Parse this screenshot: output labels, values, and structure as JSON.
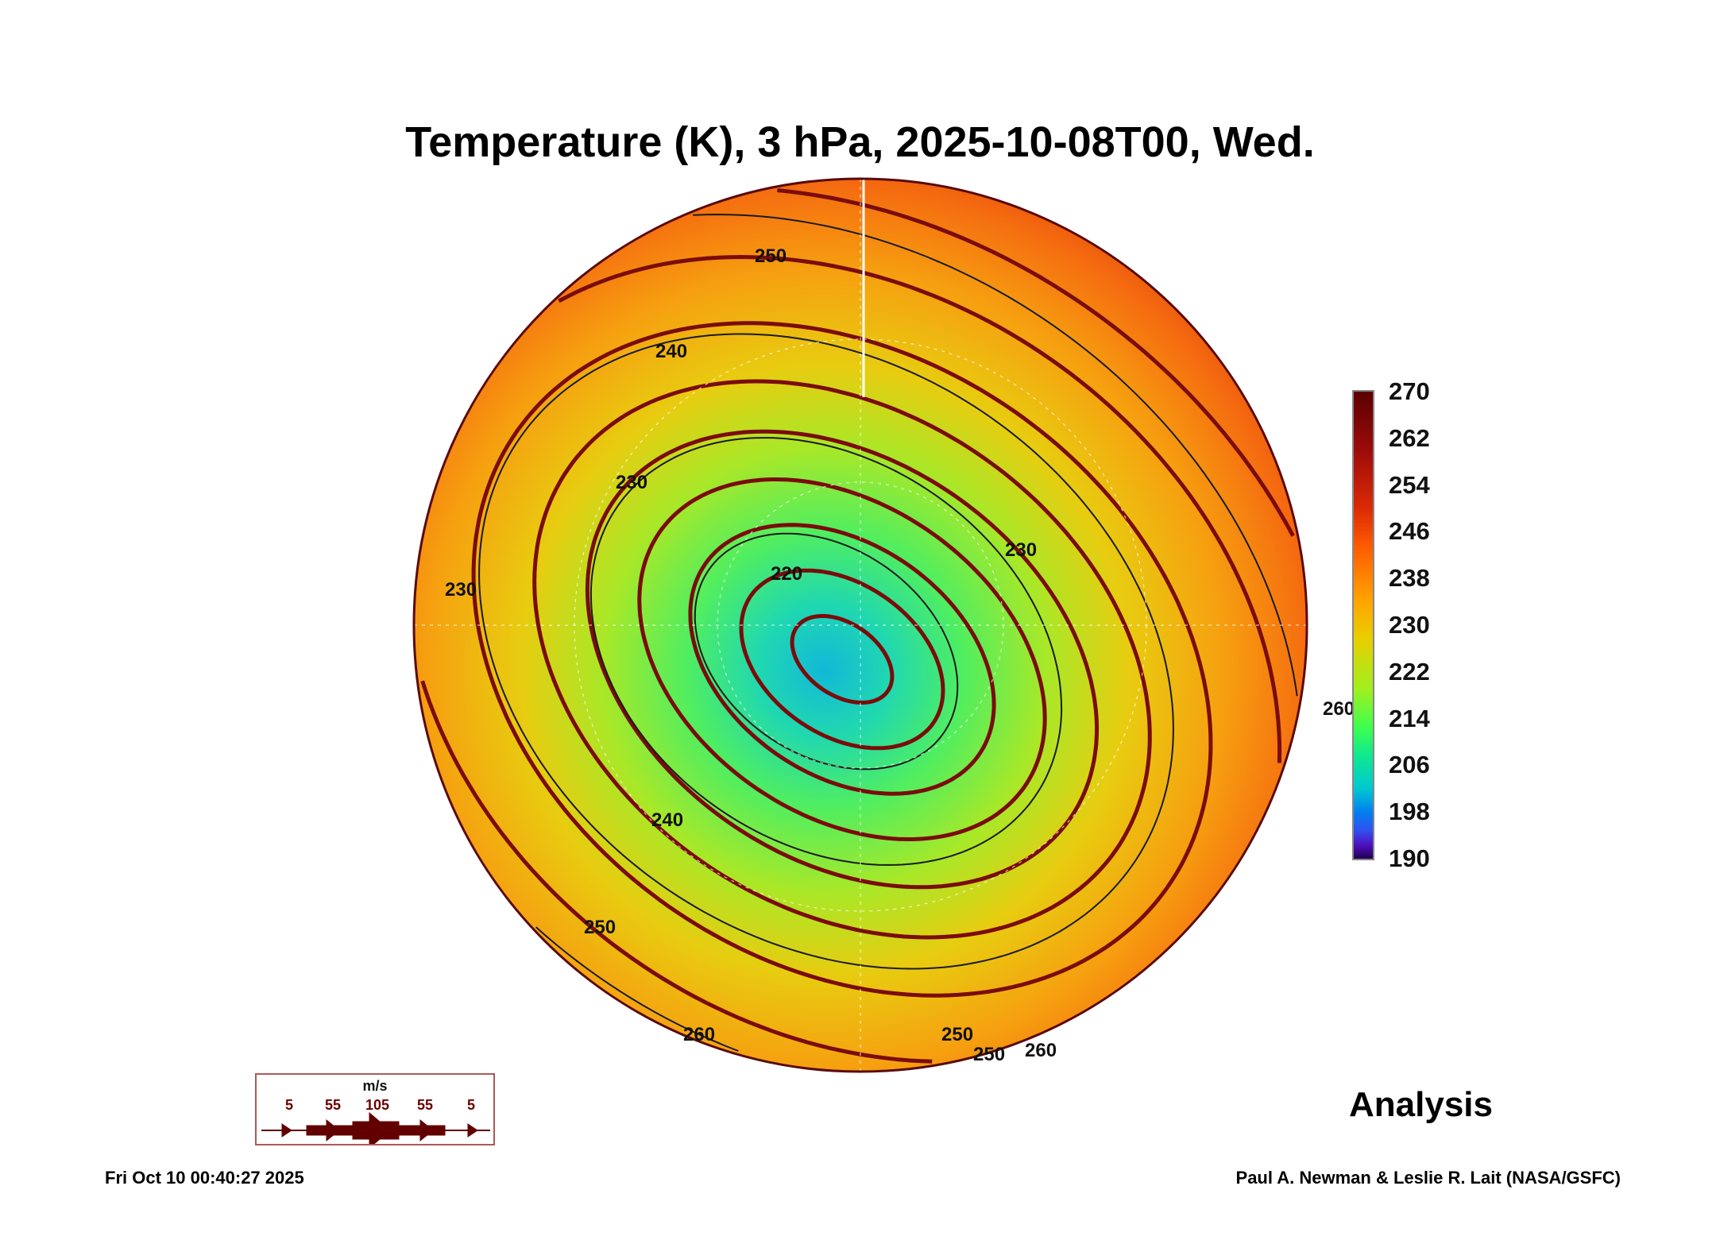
{
  "title": "Temperature (K), 3 hPa, 2025-10-08T00, Wed.",
  "colorbar": {
    "ticks": [
      "270",
      "262",
      "254",
      "246",
      "238",
      "230",
      "222",
      "214",
      "206",
      "198",
      "190"
    ],
    "range": [
      190,
      270
    ]
  },
  "map": {
    "contour_labels": [
      "250",
      "240",
      "230",
      "220",
      "240",
      "250",
      "260",
      "250",
      "260",
      "230",
      "230",
      "250",
      "260"
    ]
  },
  "legend": {
    "unit": "m/s",
    "values": [
      "5",
      "55",
      "105",
      "55",
      "5"
    ],
    "color": "#6a0000"
  },
  "label": "Analysis",
  "footer": {
    "timestamp": "Fri Oct 10 00:40:27 2025",
    "credit": "Paul A. Newman & Leslie R. Lait (NASA/GSFC)"
  }
}
